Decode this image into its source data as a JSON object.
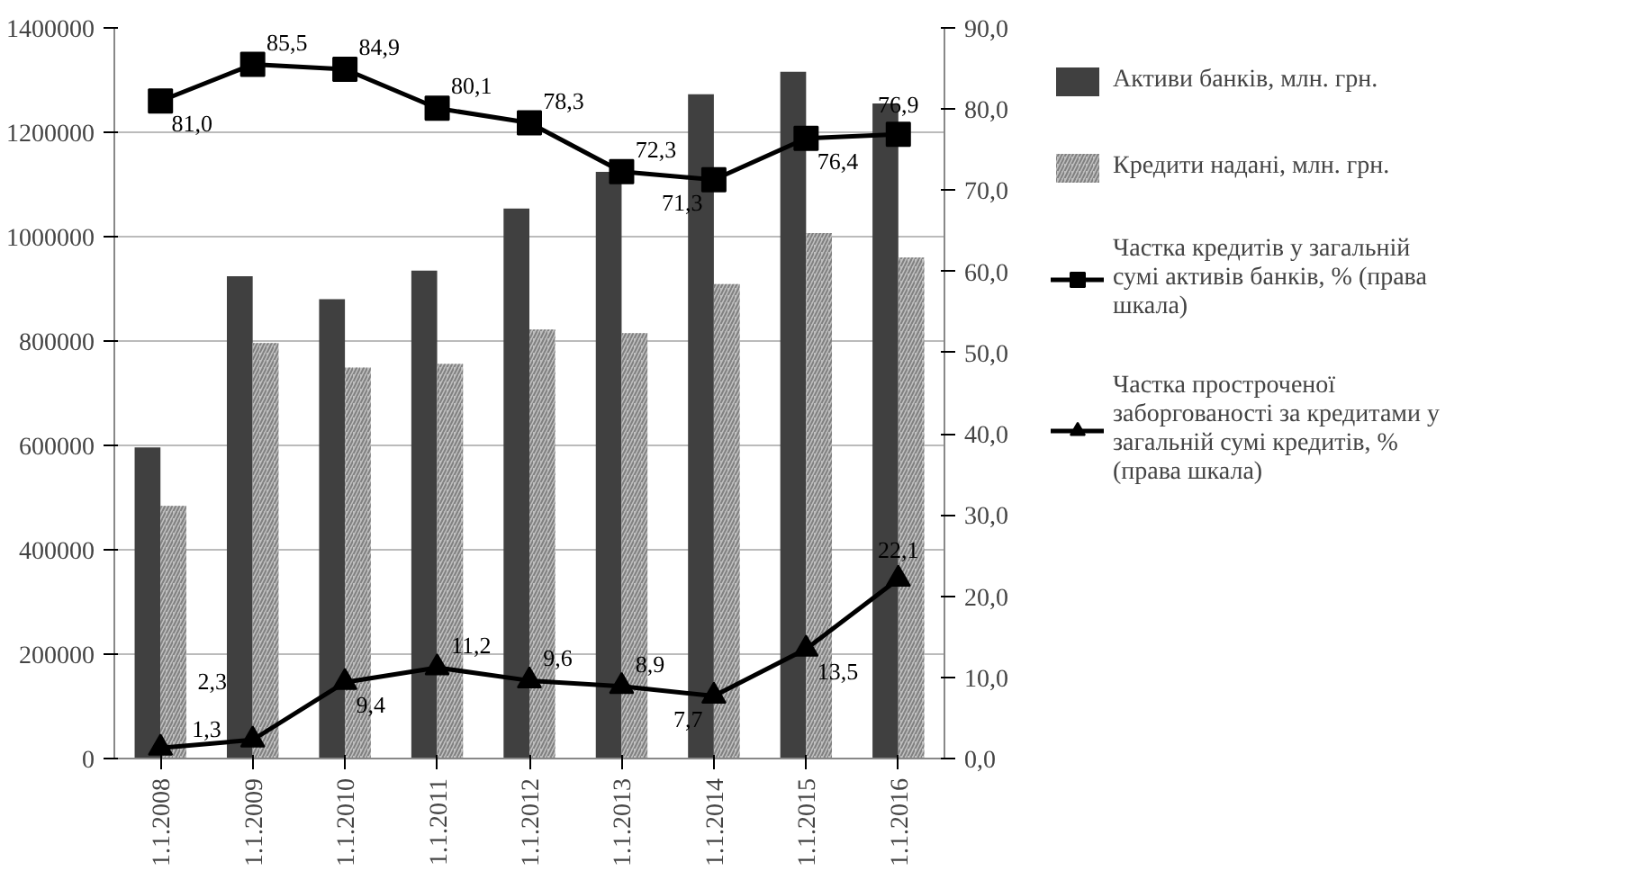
{
  "chart_data": {
    "type": "bar",
    "categories": [
      "1.1.2008",
      "1.1.2009",
      "1.1.2010",
      "1.1.2011",
      "1.1.2012",
      "1.1.2013",
      "1.1.2014",
      "1.1.2015",
      "1.1.2016"
    ],
    "series": [
      {
        "name": "Активи банків, млн. грн.",
        "color": "#404040",
        "values": [
          596000,
          924000,
          880000,
          935000,
          1054000,
          1124000,
          1273000,
          1316000,
          1255000
        ]
      },
      {
        "name": "Кредити надані, млн. грн.",
        "color": "#bfbfbf",
        "values": [
          484000,
          796000,
          749000,
          756000,
          822000,
          815000,
          909000,
          1007000,
          960000
        ]
      },
      {
        "name": "Частка кредитів у загальній сумі активів банків, % (права шкала)",
        "type": "line",
        "axis": "y2",
        "marker": "square",
        "color": "#000000",
        "values": [
          81.0,
          85.5,
          84.9,
          80.1,
          78.3,
          72.3,
          71.3,
          76.4,
          76.9
        ],
        "value_labels": [
          "81,0",
          "85,5",
          "84,9",
          "80,1",
          "78,3",
          "72,3",
          "71,3",
          "76,4",
          "76,9"
        ]
      },
      {
        "name": "Частка простроченої заборгованості за кредитами у загальній сумі кредитів, % (права шкала)",
        "type": "line",
        "axis": "y2",
        "marker": "triangle",
        "color": "#000000",
        "values": [
          1.3,
          2.3,
          9.4,
          11.2,
          9.6,
          8.9,
          7.7,
          13.5,
          22.1
        ],
        "value_labels": [
          "1,3",
          "2,3",
          "9,4",
          "11,2",
          "9,6",
          "8,9",
          "7,7",
          "13,5",
          "22,1"
        ]
      }
    ],
    "ylim": [
      0,
      1400000
    ],
    "yticks": [
      0,
      200000,
      400000,
      600000,
      800000,
      1000000,
      1200000,
      1400000
    ],
    "y2lim": [
      0,
      90
    ],
    "y2ticks": [
      {
        "value": 0,
        "label": "0,0"
      },
      {
        "value": 10,
        "label": "10,0"
      },
      {
        "value": 20,
        "label": "20,0"
      },
      {
        "value": 30,
        "label": "30,0"
      },
      {
        "value": 40,
        "label": "40,0"
      },
      {
        "value": 50,
        "label": "50,0"
      },
      {
        "value": 60,
        "label": "60,0"
      },
      {
        "value": 70,
        "label": "70,0"
      },
      {
        "value": 80,
        "label": "80,0"
      },
      {
        "value": 90,
        "label": "90,0"
      }
    ],
    "grid": "y",
    "legend": "right"
  }
}
